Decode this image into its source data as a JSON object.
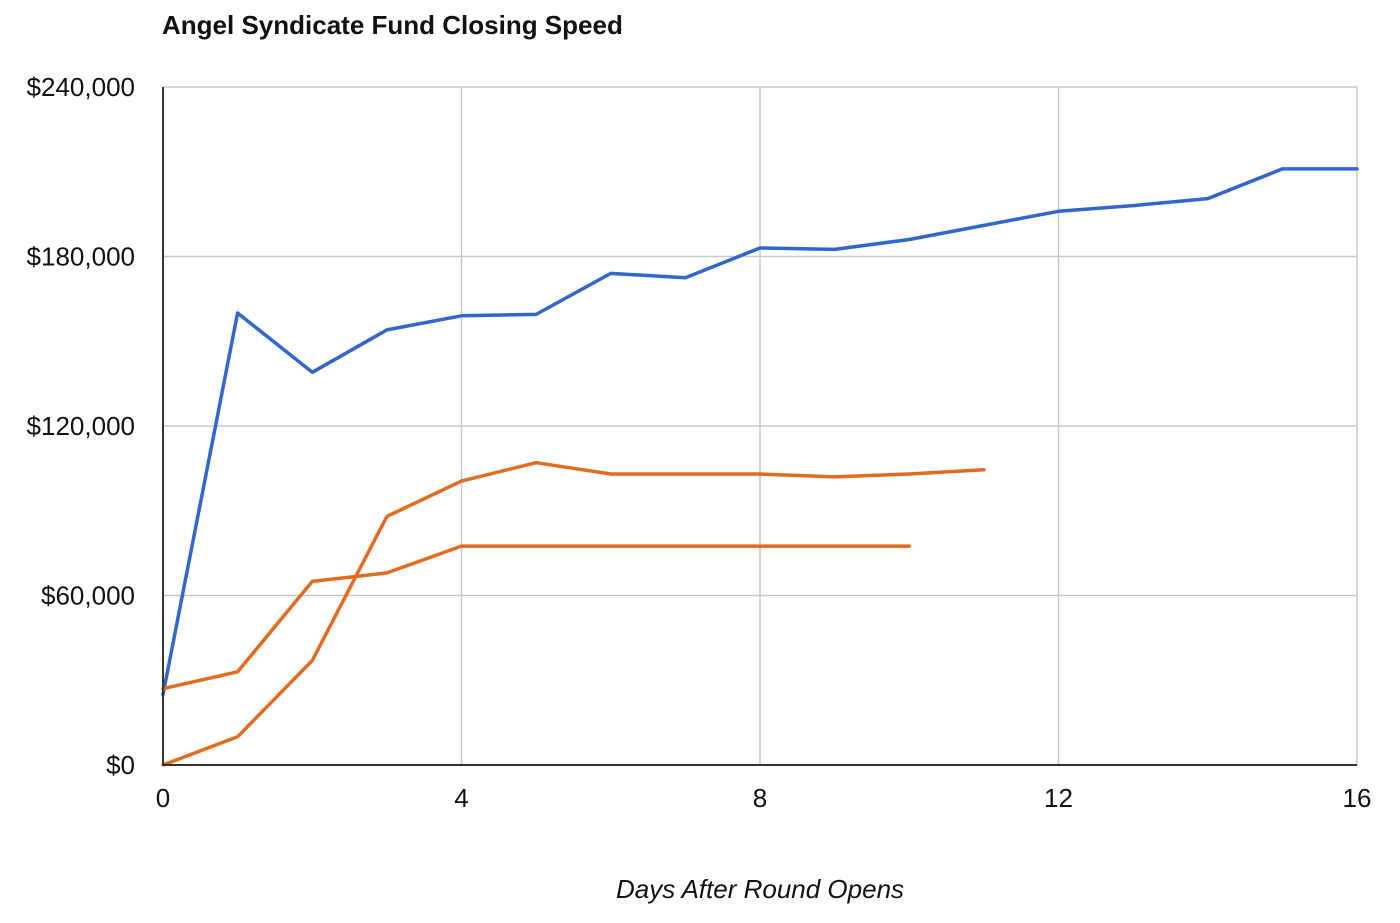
{
  "chart_data": {
    "type": "line",
    "title": "Angel Syndicate Fund Closing Speed",
    "xlabel": "Days After Round Opens",
    "ylabel": "",
    "xlim": [
      0,
      16
    ],
    "ylim": [
      0,
      240000
    ],
    "x_ticks": [
      0,
      4,
      8,
      12,
      16
    ],
    "x_tick_labels": [
      "0",
      "4",
      "8",
      "12",
      "16"
    ],
    "y_ticks": [
      0,
      60000,
      120000,
      180000,
      240000
    ],
    "y_tick_labels": [
      "$0",
      "$60,000",
      "$120,000",
      "$180,000",
      "$240,000"
    ],
    "grid": true,
    "legend": "none",
    "series": [
      {
        "color": "#3366cc",
        "x": [
          0,
          1,
          2,
          3,
          4,
          5,
          6,
          7,
          8,
          9,
          10,
          11,
          12,
          13,
          14,
          15,
          16
        ],
        "y": [
          25000,
          160000,
          139000,
          154000,
          159000,
          159500,
          174000,
          172500,
          183000,
          182500,
          186000,
          191000,
          196000,
          198000,
          200500,
          211000,
          211000
        ]
      },
      {
        "color": "#e06c1f",
        "x": [
          0,
          1,
          2,
          3,
          4,
          5,
          6,
          7,
          8,
          9,
          10,
          11
        ],
        "y": [
          0,
          10000,
          37000,
          88000,
          100500,
          107000,
          103000,
          103000,
          103000,
          102000,
          103000,
          104500
        ]
      },
      {
        "color": "#e06c1f",
        "x": [
          0,
          1,
          2,
          3,
          4,
          5,
          6,
          7,
          8,
          9,
          10
        ],
        "y": [
          27000,
          33000,
          65000,
          68000,
          77500,
          77500,
          77500,
          77500,
          77500,
          77500,
          77500
        ]
      }
    ]
  }
}
